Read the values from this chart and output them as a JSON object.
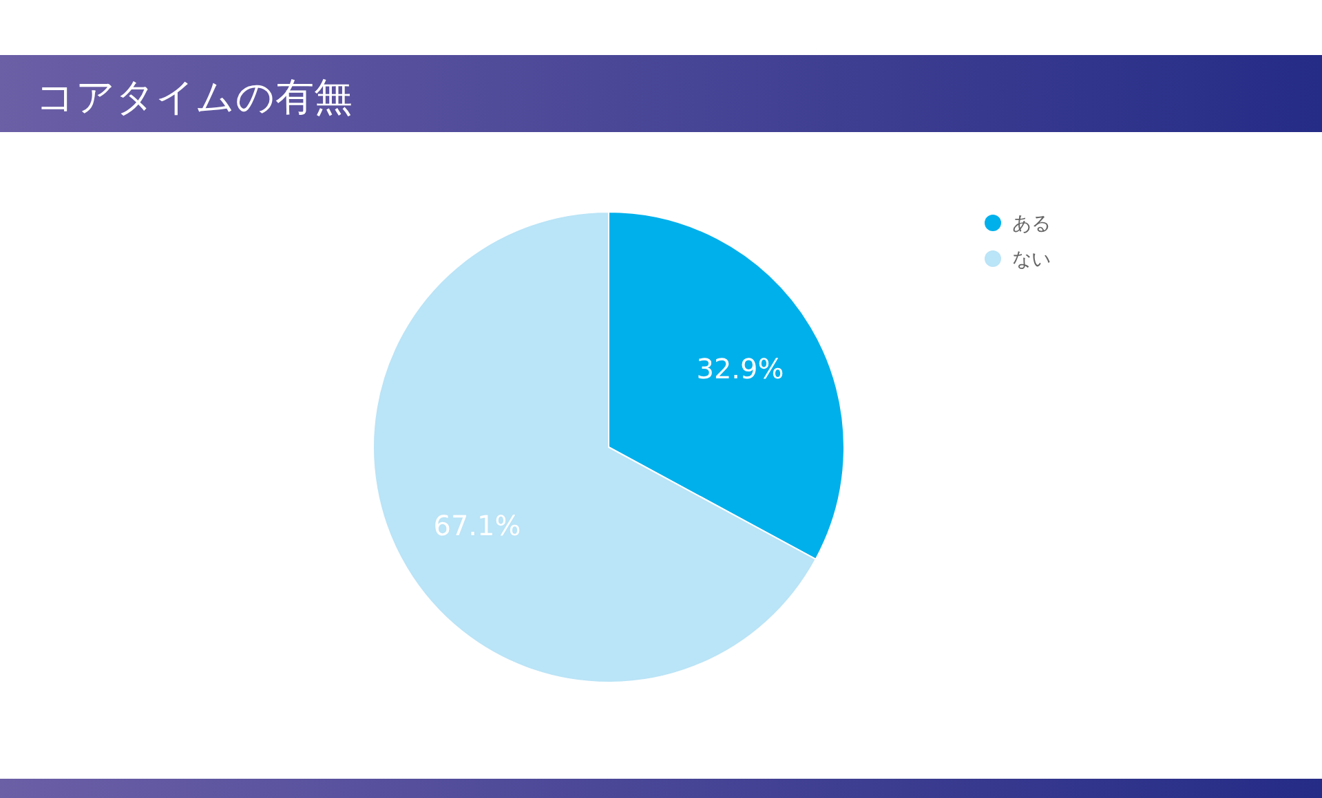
{
  "chart_data": {
    "type": "pie",
    "title": "コアタイムの有無",
    "categories": [
      "ある",
      "ない"
    ],
    "values": [
      32.9,
      67.1
    ],
    "colors": [
      "#00b0eb",
      "#bae4f7"
    ],
    "value_labels": [
      "32.9%",
      "67.1%"
    ],
    "legend": "top right"
  }
}
